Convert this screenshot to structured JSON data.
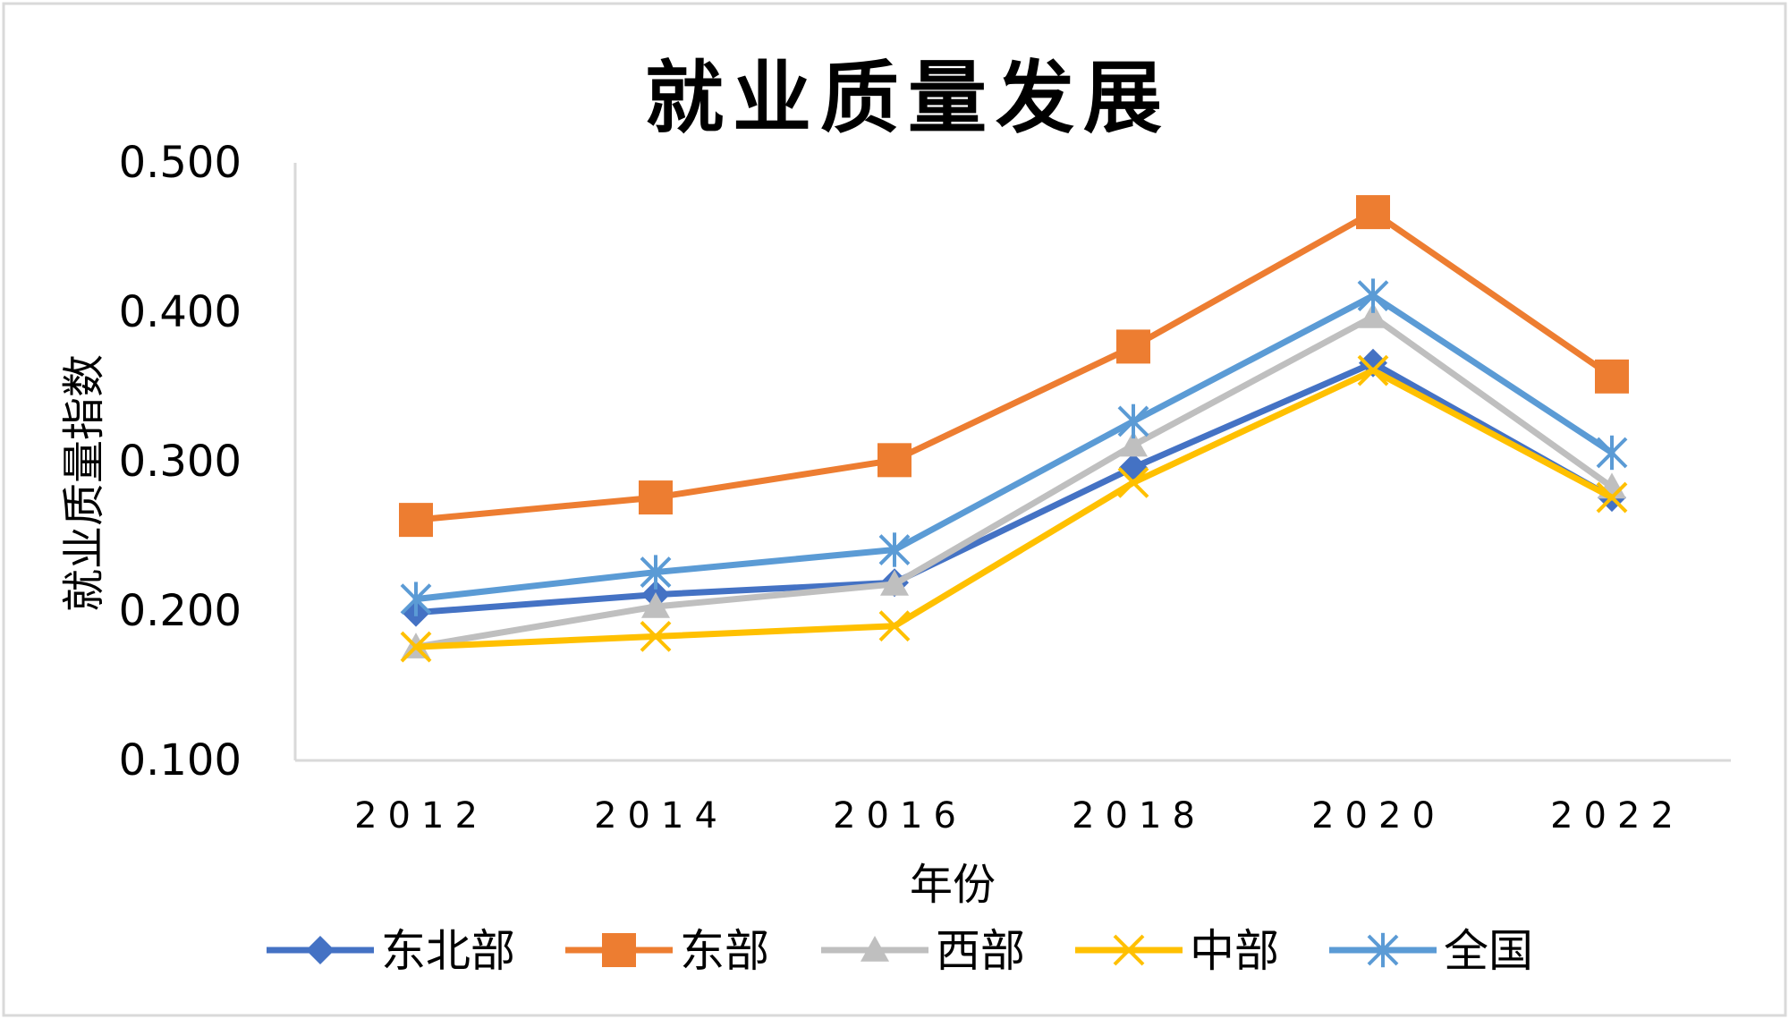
{
  "chart_data": {
    "type": "line",
    "title": "就业质量发展",
    "xlabel": "年份",
    "ylabel": "就业质量指数",
    "categories": [
      "2012",
      "2014",
      "2016",
      "2018",
      "2020",
      "2022"
    ],
    "ylim": [
      0.1,
      0.5
    ],
    "yticks": [
      "0.500",
      "0.400",
      "0.300",
      "0.200",
      "0.100"
    ],
    "ytick_values": [
      0.5,
      0.4,
      0.3,
      0.2,
      0.1
    ],
    "legend_position": "bottom",
    "series": [
      {
        "name": "东北部",
        "marker": "diamond",
        "color": "#4472C4",
        "values": [
          0.199,
          0.211,
          0.219,
          0.296,
          0.366,
          0.276
        ]
      },
      {
        "name": "东部",
        "marker": "square",
        "color": "#ED7D31",
        "values": [
          0.261,
          0.276,
          0.301,
          0.377,
          0.467,
          0.357
        ]
      },
      {
        "name": "西部",
        "marker": "triangle",
        "color": "#BFBFBF",
        "values": [
          0.176,
          0.203,
          0.218,
          0.311,
          0.397,
          0.283
        ]
      },
      {
        "name": "中部",
        "marker": "x",
        "color": "#FFC000",
        "values": [
          0.176,
          0.183,
          0.19,
          0.286,
          0.361,
          0.276
        ]
      },
      {
        "name": "全国",
        "marker": "star",
        "color": "#5B9BD5",
        "values": [
          0.208,
          0.226,
          0.241,
          0.327,
          0.411,
          0.306
        ]
      }
    ]
  }
}
